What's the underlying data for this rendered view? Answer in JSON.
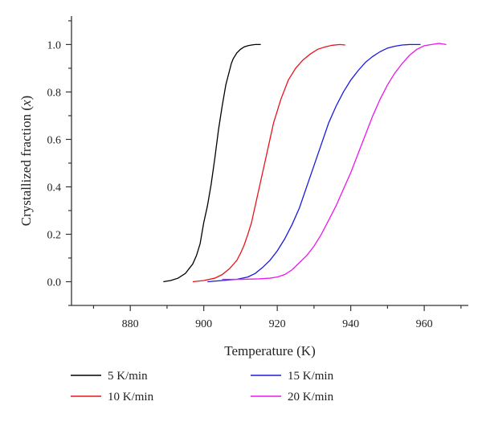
{
  "chart_data": {
    "type": "line",
    "xlabel": "Temperature (K)",
    "ylabel_main": "Crystallized fraction (",
    "ylabel_var": "x",
    "ylabel_end": ")",
    "xlim": [
      864,
      972
    ],
    "ylim": [
      -0.1,
      1.12
    ],
    "xticks": [
      880,
      900,
      920,
      940,
      960
    ],
    "xtick_labels": [
      "880",
      "900",
      "920",
      "940",
      "960"
    ],
    "yticks": [
      0.0,
      0.2,
      0.4,
      0.6,
      0.8,
      1.0
    ],
    "ytick_labels": [
      "0.0",
      "0.2",
      "0.4",
      "0.6",
      "0.8",
      "1.0"
    ],
    "grid": false,
    "legend_position": "bottom",
    "series": [
      {
        "name": "5 K/min",
        "color": "#000000",
        "x": [
          889.0,
          891.0,
          893.0,
          895.0,
          897.0,
          898.0,
          899.0,
          900.0,
          901.0,
          902.0,
          903.0,
          904.0,
          905.0,
          906.0,
          907.0,
          907.5,
          908.0,
          909.0,
          910.0,
          911.0,
          912.0,
          913.0,
          914.0,
          915.5
        ],
        "y": [
          0.0,
          0.005,
          0.015,
          0.035,
          0.075,
          0.11,
          0.16,
          0.25,
          0.32,
          0.41,
          0.52,
          0.64,
          0.74,
          0.83,
          0.89,
          0.92,
          0.94,
          0.965,
          0.98,
          0.99,
          0.995,
          0.998,
          1.0,
          1.0
        ]
      },
      {
        "name": "10 K/min",
        "color": "#e8141c",
        "x": [
          897.0,
          900.0,
          903.0,
          905.0,
          907.0,
          909.0,
          910.0,
          911.0,
          912.0,
          913.0,
          914.0,
          915.0,
          916.0,
          917.0,
          918.0,
          919.0,
          920.0,
          921.0,
          922.0,
          923.0,
          924.0,
          925.0,
          927.0,
          929.0,
          931.0,
          933.0,
          935.0,
          937.0,
          938.5
        ],
        "y": [
          0.0,
          0.005,
          0.015,
          0.03,
          0.055,
          0.09,
          0.12,
          0.155,
          0.2,
          0.25,
          0.32,
          0.39,
          0.46,
          0.53,
          0.6,
          0.67,
          0.72,
          0.77,
          0.81,
          0.85,
          0.875,
          0.9,
          0.935,
          0.96,
          0.98,
          0.99,
          0.997,
          1.0,
          0.998
        ]
      },
      {
        "name": "15 K/min",
        "color": "#1a1adf",
        "x": [
          901.0,
          905.0,
          909.0,
          912.0,
          914.0,
          916.0,
          918.0,
          920.0,
          922.0,
          924.0,
          926.0,
          928.0,
          930.0,
          932.0,
          934.0,
          936.0,
          938.0,
          940.0,
          942.0,
          944.0,
          946.0,
          948.0,
          950.0,
          952.0,
          954.0,
          956.0,
          959.0
        ],
        "y": [
          0.0,
          0.005,
          0.01,
          0.02,
          0.035,
          0.06,
          0.09,
          0.13,
          0.18,
          0.24,
          0.31,
          0.4,
          0.49,
          0.58,
          0.67,
          0.74,
          0.8,
          0.85,
          0.89,
          0.925,
          0.95,
          0.97,
          0.985,
          0.993,
          0.998,
          1.0,
          1.0
        ]
      },
      {
        "name": "20 K/min",
        "color": "#ea18ea",
        "x": [
          905.0,
          910.0,
          915.0,
          918.0,
          920.0,
          922.0,
          924.0,
          926.0,
          928.0,
          930.0,
          932.0,
          934.0,
          936.0,
          938.0,
          940.0,
          942.0,
          944.0,
          946.0,
          948.0,
          950.0,
          952.0,
          954.0,
          956.0,
          958.0,
          960.0,
          962.0,
          964.0,
          966.0
        ],
        "y": [
          0.01,
          0.01,
          0.012,
          0.015,
          0.02,
          0.03,
          0.05,
          0.08,
          0.11,
          0.15,
          0.2,
          0.26,
          0.32,
          0.39,
          0.46,
          0.54,
          0.62,
          0.7,
          0.77,
          0.83,
          0.88,
          0.92,
          0.955,
          0.98,
          0.995,
          1.0,
          1.005,
          1.0
        ]
      }
    ]
  }
}
